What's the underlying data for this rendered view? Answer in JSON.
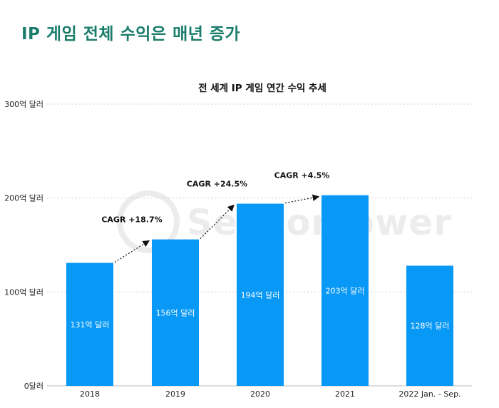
{
  "page": {
    "title": "IP 게임 전체 수익은 매년 증가"
  },
  "watermark": {
    "text": "SensorTower"
  },
  "colors": {
    "title": "#1a7d6b",
    "bar": "#0898f5",
    "grid": "#cfcfcf"
  },
  "chart_data": {
    "type": "bar",
    "title": "전 세계 IP 게임 연간 수익 추세",
    "xlabel": "",
    "ylabel": "",
    "ylim": [
      0,
      300
    ],
    "yticks": [
      0,
      100,
      200,
      300
    ],
    "ytick_labels": [
      "0달러",
      "100억 달러",
      "200억 달러",
      "300억 달러"
    ],
    "categories": [
      "2018",
      "2019",
      "2020",
      "2021",
      "2022 Jan. - Sep."
    ],
    "values": [
      131,
      156,
      194,
      203,
      128
    ],
    "value_labels": [
      "131억 달러",
      "156억 달러",
      "194억 달러",
      "203억 달러",
      "128억 달러"
    ],
    "annotations": [
      {
        "text": "CAGR +18.7%",
        "from": 0,
        "to": 1
      },
      {
        "text": "CAGR +24.5%",
        "from": 1,
        "to": 2
      },
      {
        "text": "CAGR +4.5%",
        "from": 2,
        "to": 3
      }
    ]
  }
}
